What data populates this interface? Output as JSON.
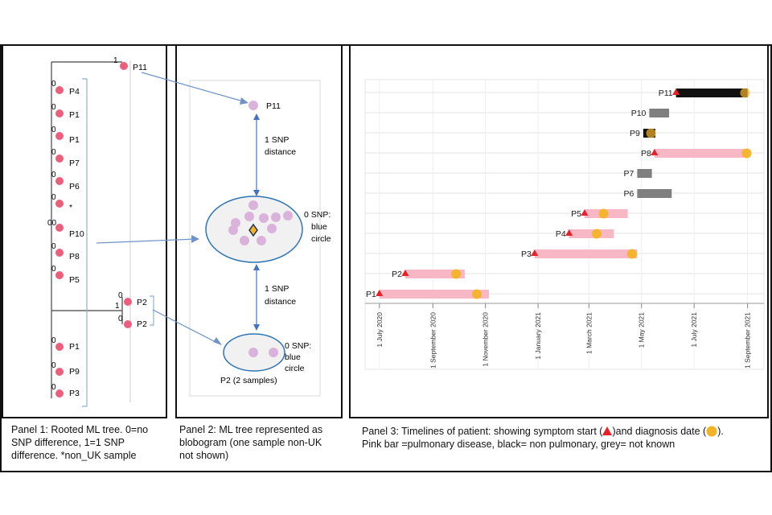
{
  "panel1": {
    "root_label": {
      "branch": "1",
      "tip": "P11"
    },
    "tips": [
      {
        "branch": "0",
        "label": "P4"
      },
      {
        "branch": "0",
        "label": "P1"
      },
      {
        "branch": "0",
        "label": "P1"
      },
      {
        "branch": "0",
        "label": "P7"
      },
      {
        "branch": "0",
        "label": "P6"
      },
      {
        "branch": "0",
        "label": "*"
      },
      {
        "branch": "00",
        "label": "P10"
      },
      {
        "branch": "0",
        "label": "P8"
      },
      {
        "branch": "0",
        "label": "P5"
      }
    ],
    "sub_clade": {
      "branch": "1",
      "tips": [
        {
          "branch": "0",
          "label": "P2"
        },
        {
          "branch": "0",
          "label": "P2"
        }
      ]
    },
    "lower_tips": [
      {
        "branch": "0",
        "label": "P1"
      },
      {
        "branch": "0",
        "label": "P9"
      },
      {
        "branch": "0",
        "label": "P3"
      }
    ],
    "caption": [
      "Panel 1: Rooted ML tree. 0=no",
      "SNP difference, 1=1 SNP",
      "difference. *non_UK sample"
    ]
  },
  "panel2": {
    "top_node": "P11",
    "snp_top": [
      "1 SNP",
      "distance"
    ],
    "blob_label": [
      "0 SNP:",
      "blue",
      "circle"
    ],
    "snp_bottom": [
      "1 SNP",
      "distance"
    ],
    "small_blob_label": [
      "0 SNP:",
      "blue",
      "circle"
    ],
    "small_blob_caption": "P2 (2 samples)",
    "caption": [
      "Panel 2: ML tree represented as",
      "blobogram (one sample  non-UK",
      "not shown)"
    ]
  },
  "panel3": {
    "chart_data": {
      "type": "timeline",
      "title": "",
      "x_axis_ticks": [
        "1 July 2020",
        "1 September 2020",
        "1 November 2020",
        "1 January 2021",
        "1 March 2021",
        "1 May 2021",
        "1 July 2021",
        "1 September 2021"
      ],
      "x_range": [
        "2020-06-20",
        "2021-09-20"
      ],
      "rows": [
        {
          "label": "P11",
          "start": "2021-06-10",
          "end": "2021-09-01",
          "color": "black",
          "symptom": "2021-06-10",
          "diagnosis": "2021-08-29"
        },
        {
          "label": "P10",
          "start": "2021-05-10",
          "end": "2021-06-02",
          "color": "grey"
        },
        {
          "label": "P9",
          "start": "2021-05-03",
          "end": "2021-05-17",
          "color": "black",
          "diagnosis": "2021-05-12"
        },
        {
          "label": "P8",
          "start": "2021-05-16",
          "end": "2021-08-31",
          "color": "pink",
          "symptom": "2021-05-16",
          "diagnosis": "2021-08-31"
        },
        {
          "label": "P7",
          "start": "2021-04-26",
          "end": "2021-05-13",
          "color": "grey"
        },
        {
          "label": "P6",
          "start": "2021-04-26",
          "end": "2021-06-05",
          "color": "grey"
        },
        {
          "label": "P5",
          "start": "2021-02-24",
          "end": "2021-04-15",
          "color": "pink",
          "symptom": "2021-02-24",
          "diagnosis": "2021-03-18"
        },
        {
          "label": "P4",
          "start": "2021-02-06",
          "end": "2021-03-30",
          "color": "pink",
          "symptom": "2021-02-06",
          "diagnosis": "2021-03-10"
        },
        {
          "label": "P3",
          "start": "2020-12-28",
          "end": "2021-04-26",
          "color": "pink",
          "symptom": "2020-12-28",
          "diagnosis": "2021-04-20"
        },
        {
          "label": "P2",
          "start": "2020-07-31",
          "end": "2020-10-08",
          "color": "pink",
          "symptom": "2020-07-31",
          "diagnosis": "2020-09-28"
        },
        {
          "label": "P1",
          "start": "2020-07-01",
          "end": "2020-11-05",
          "color": "pink",
          "symptom": "2020-07-01",
          "diagnosis": "2020-10-22"
        }
      ],
      "colors": {
        "pink": "#f8b7c4",
        "black": "#111111",
        "grey": "#7f7f7f",
        "triangle": "#e8202a",
        "circle": "#f4b327"
      }
    },
    "caption": {
      "line1_a": "Panel 3: Timelines of patient: showing symptom start (",
      "line1_b": ")and diagnosis date (",
      "line1_c": ").",
      "line2": "Pink bar =pulmonary disease, black= non pulmonary, grey= not known"
    }
  }
}
